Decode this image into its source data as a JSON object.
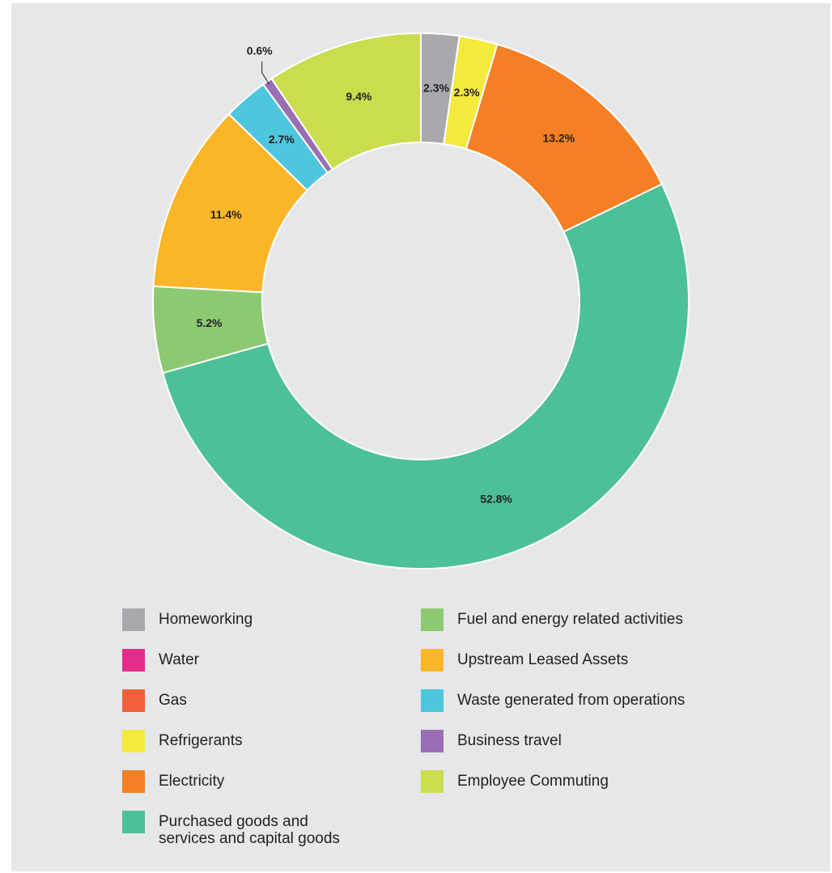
{
  "chart_data": {
    "type": "pie",
    "title": "",
    "slices": [
      {
        "label": "Homeworking",
        "value": 2.3,
        "display": "2.3%",
        "color": "#a7a9ac"
      },
      {
        "label": "Refrigerants",
        "value": 2.3,
        "display": "2.3%",
        "color": "#f3ea3d"
      },
      {
        "label": "Electricity",
        "value": 13.2,
        "display": "13.2%",
        "color": "#f47f24"
      },
      {
        "label": "Purchased goods and services and capital goods",
        "value": 52.8,
        "display": "52.8%",
        "color": "#4cc096"
      },
      {
        "label": "Fuel and energy related activities",
        "value": 5.2,
        "display": "5.2%",
        "color": "#8dc971"
      },
      {
        "label": "Upstream Leased Assets",
        "value": 11.4,
        "display": "11.4%",
        "color": "#fbb528"
      },
      {
        "label": "Waste generated from operations",
        "value": 2.7,
        "display": "2.7%",
        "color": "#4ec6dd"
      },
      {
        "label": "Business travel",
        "value": 0.6,
        "display": "0.6%",
        "color": "#9a6eb4"
      },
      {
        "label": "Employee Commuting",
        "value": 9.4,
        "display": "9.4%",
        "color": "#cbdc4f"
      }
    ],
    "legend": [
      {
        "label": "Homeworking",
        "color": "#a7a9ac"
      },
      {
        "label": "Water",
        "color": "#e42d8a"
      },
      {
        "label": "Gas",
        "color": "#f05f3b"
      },
      {
        "label": "Refrigerants",
        "color": "#f3ea3d"
      },
      {
        "label": "Electricity",
        "color": "#f47f24"
      },
      {
        "label": "Purchased goods and\nservices and capital goods",
        "color": "#4cc096"
      },
      {
        "label": "Fuel and energy related activities",
        "color": "#8dc971"
      },
      {
        "label": "Upstream Leased Assets",
        "color": "#fbb528"
      },
      {
        "label": "Waste generated from operations",
        "color": "#4ec6dd"
      },
      {
        "label": "Business travel",
        "color": "#9a6eb4"
      },
      {
        "label": "Employee Commuting",
        "color": "#cbdc4f"
      }
    ],
    "legend_placement": "bottom"
  },
  "colors": {
    "background": "#e6e7e8",
    "label_text": "#231f20"
  }
}
